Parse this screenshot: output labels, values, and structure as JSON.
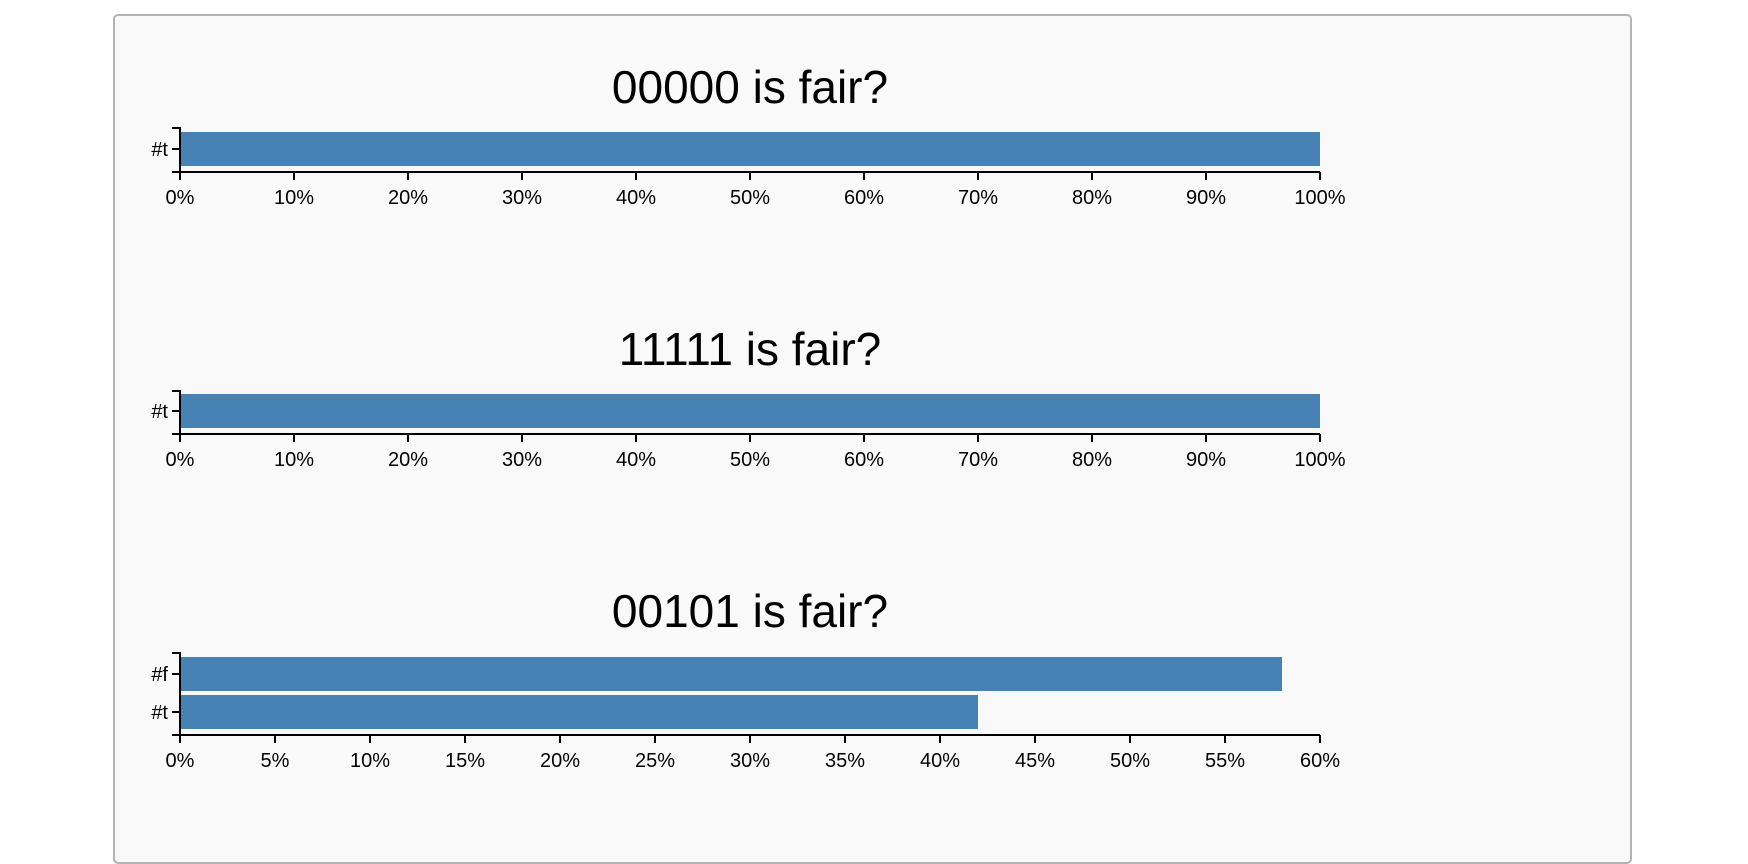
{
  "panel_border_color": "#b4b4b4",
  "panel_background": "#f9f9f9",
  "bar_color": "#4682b4",
  "chart_data": [
    {
      "type": "bar",
      "orientation": "horizontal",
      "title": "00000 is fair?",
      "categories": [
        "#t"
      ],
      "values": [
        100
      ],
      "xlim": [
        0,
        100
      ],
      "tick_step": 10,
      "tick_suffix": "%",
      "grid": false
    },
    {
      "type": "bar",
      "orientation": "horizontal",
      "title": "11111 is fair?",
      "categories": [
        "#t"
      ],
      "values": [
        100
      ],
      "xlim": [
        0,
        100
      ],
      "tick_step": 10,
      "tick_suffix": "%",
      "grid": false
    },
    {
      "type": "bar",
      "orientation": "horizontal",
      "title": "00101 is fair?",
      "categories": [
        "#f",
        "#t"
      ],
      "values": [
        58,
        42
      ],
      "xlim": [
        0,
        60
      ],
      "tick_step": 5,
      "tick_suffix": "%",
      "grid": false
    }
  ]
}
